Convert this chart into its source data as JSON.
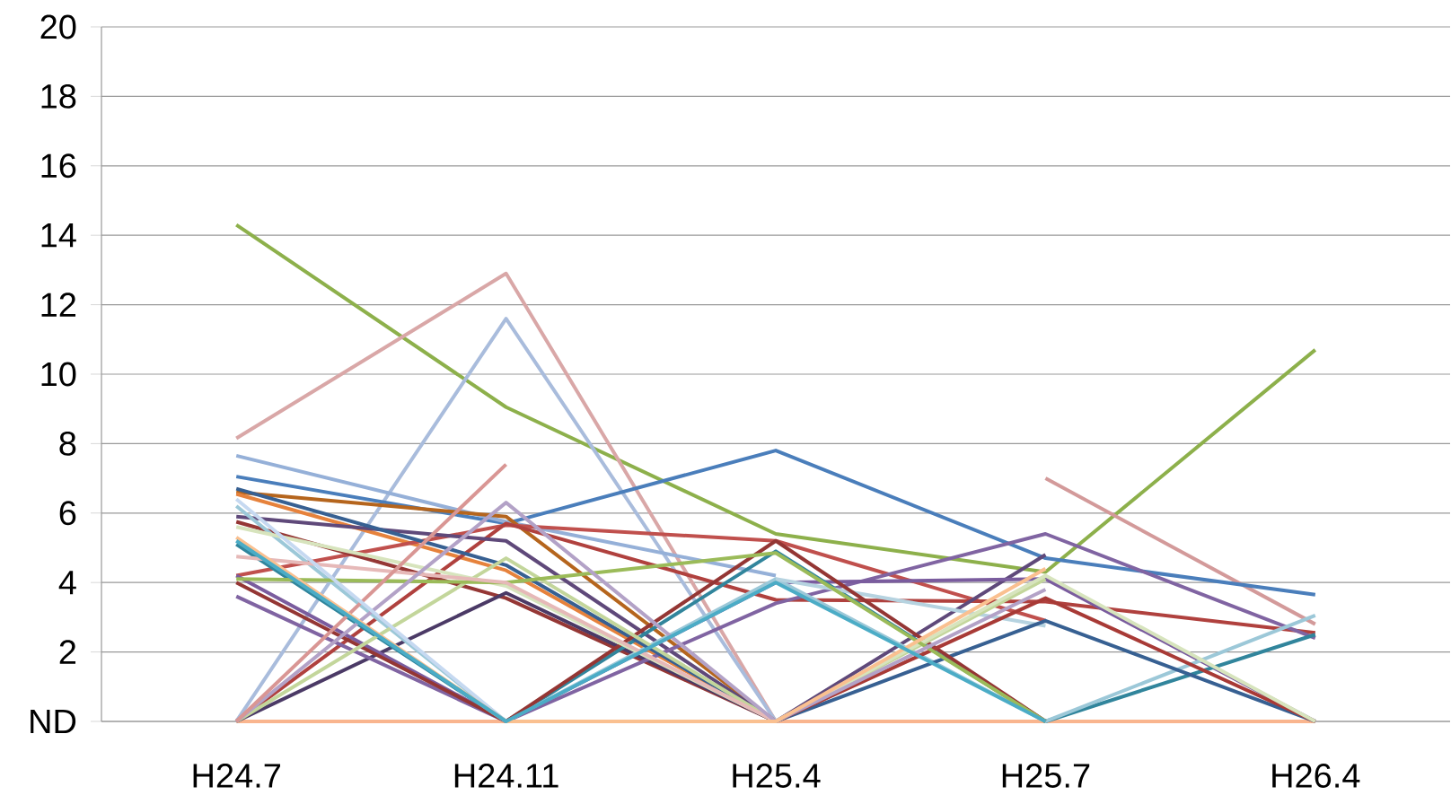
{
  "chart_data": {
    "type": "line",
    "categories": [
      "H24.7",
      "H24.11",
      "H25.4",
      "H25.7",
      "H26.4"
    ],
    "ylim": [
      0,
      20
    ],
    "yticks": [
      {
        "value": 0,
        "label": "ND"
      },
      2,
      4,
      6,
      8,
      10,
      12,
      14,
      16,
      18,
      20
    ],
    "grid": "y",
    "marker": "none",
    "line_style": "solid",
    "series": [
      {
        "color": "#f9b58e",
        "values": [
          0,
          0,
          0,
          0,
          0
        ]
      },
      {
        "color": "#8db04b",
        "values": [
          14.3,
          9.05,
          5.4,
          4.3,
          10.7
        ]
      },
      {
        "color": "#d9a7a7",
        "values": [
          8.15,
          12.9,
          0,
          null,
          null
        ]
      },
      {
        "color": "#d39a9a",
        "values": [
          null,
          null,
          null,
          7,
          2.8
        ]
      },
      {
        "color": "#a9bcdc",
        "values": [
          0,
          11.6,
          0,
          null,
          null
        ]
      },
      {
        "color": "#4a7ebb",
        "values": [
          7.05,
          5.7,
          7.8,
          4.7,
          3.65
        ]
      },
      {
        "color": "#95b0d8",
        "values": [
          7.65,
          5.75,
          4.2,
          null,
          null
        ]
      },
      {
        "color": "#b5651d",
        "values": [
          6.6,
          5.9,
          0,
          null,
          null
        ]
      },
      {
        "color": "#e6823c",
        "values": [
          6.55,
          4.35,
          0,
          null,
          null
        ]
      },
      {
        "color": "#c0504d",
        "values": [
          4.2,
          5.65,
          5.2,
          2.9,
          null
        ]
      },
      {
        "color": "#b0413e",
        "values": [
          0,
          5.7,
          3.5,
          3.45,
          2.55
        ]
      },
      {
        "color": "#953735",
        "values": [
          5.75,
          3.55,
          0,
          null,
          null
        ]
      },
      {
        "color": "#5f497a",
        "values": [
          5.9,
          5.2,
          0,
          4.8,
          null
        ]
      },
      {
        "color": "#4b3a66",
        "values": [
          0,
          3.7,
          0,
          null,
          null
        ]
      },
      {
        "color": "#8064a2",
        "values": [
          3.6,
          0,
          3.4,
          5.4,
          2.4
        ]
      },
      {
        "color": "#7a5c9e",
        "values": [
          4.2,
          0,
          4.0,
          4.1,
          0
        ]
      },
      {
        "color": "#31859c",
        "values": [
          5.1,
          0,
          4.9,
          0,
          2.5
        ]
      },
      {
        "color": "#9cc8d8",
        "values": [
          6.2,
          0,
          4.1,
          0,
          3.05
        ]
      },
      {
        "color": "#b6d3e0",
        "values": [
          null,
          null,
          4.1,
          2.75,
          null
        ]
      },
      {
        "color": "#376092",
        "values": [
          6.7,
          4.5,
          0,
          2.9,
          0
        ]
      },
      {
        "color": "#943634",
        "values": [
          4.0,
          0,
          5.2,
          0,
          null
        ]
      },
      {
        "color": "#a83a36",
        "values": [
          null,
          null,
          0,
          3.55,
          0
        ]
      },
      {
        "color": "#c3d69b",
        "values": [
          0,
          4.7,
          0,
          4.1,
          null
        ]
      },
      {
        "color": "#d7e4bd",
        "values": [
          5.6,
          3.9,
          0,
          4.2,
          0
        ]
      },
      {
        "color": "#9bbb59",
        "values": [
          4.1,
          4.0,
          4.85,
          0,
          null
        ]
      },
      {
        "color": "#e6b9b8",
        "values": [
          4.75,
          4.0,
          0,
          null,
          null
        ]
      },
      {
        "color": "#b3a2c7",
        "values": [
          0,
          6.3,
          0,
          3.8,
          null
        ]
      },
      {
        "color": "#d99694",
        "values": [
          0,
          7.4,
          null,
          null,
          null
        ]
      },
      {
        "color": "#c6d9f1",
        "values": [
          6.4,
          0,
          null,
          null,
          null
        ]
      },
      {
        "color": "#fac090",
        "values": [
          5.3,
          0,
          0,
          4.4,
          null
        ]
      },
      {
        "color": "#4bacc6",
        "values": [
          5.2,
          0,
          4.0,
          0,
          null
        ]
      }
    ]
  }
}
